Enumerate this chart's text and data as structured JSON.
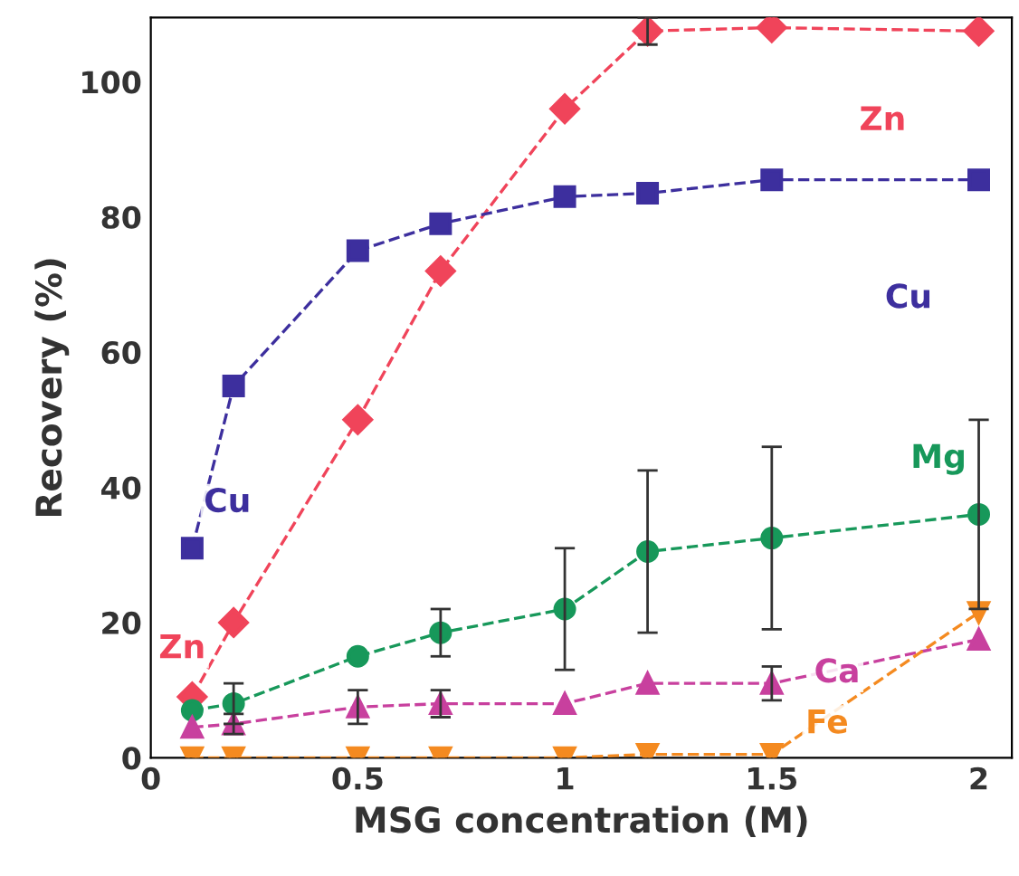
{
  "chart_data": {
    "type": "line",
    "xlabel": "MSG concentration (M)",
    "ylabel": "Recovery (%)",
    "x": [
      0.1,
      0.2,
      0.5,
      0.7,
      1,
      1.2,
      1.5,
      2
    ],
    "xlim": [
      0,
      2.08
    ],
    "ylim": [
      0,
      109.5
    ],
    "xticks": [
      0,
      0.5,
      1,
      1.5,
      2
    ],
    "yticks": [
      0,
      20,
      40,
      60,
      80,
      100
    ],
    "grid": false,
    "legend": false,
    "line_style": "dashed",
    "series": [
      {
        "color": "#f0445a",
        "marker": "diamond",
        "values": [
          9,
          20,
          50,
          72,
          96,
          107.5,
          108,
          107.5
        ],
        "errors": [
          null,
          null,
          null,
          null,
          null,
          2,
          null,
          null
        ]
      },
      {
        "color": "#3d2f9e",
        "marker": "square",
        "values": [
          31,
          55,
          75,
          79,
          83,
          83.5,
          85.5,
          85.5
        ]
      },
      {
        "color": "#17985a",
        "marker": "circle",
        "values": [
          7,
          8,
          15,
          18.5,
          22,
          30.5,
          32.5,
          36
        ],
        "errors": [
          null,
          3,
          null,
          3.5,
          9,
          12,
          13.5,
          14
        ]
      },
      {
        "color": "#c8409e",
        "marker": "triangle",
        "values": [
          4.5,
          5,
          7.5,
          8,
          8,
          11,
          11,
          17.5
        ],
        "errors": [
          null,
          1.5,
          2.5,
          2,
          null,
          null,
          2.5,
          null
        ]
      },
      {
        "color": "#f48a20",
        "marker": "triangle_down",
        "values": [
          0,
          0,
          0,
          0,
          0,
          0.5,
          0.5,
          21.5
        ]
      }
    ],
    "annotations": [
      "Zn",
      "Cu",
      {
        "text": "Mg",
        "x": 2,
        "y": 36
      },
      {
        "text": "Ca",
        "x": 1.5,
        "y": 11
      },
      {
        "text": "Fe",
        "x": 1.5,
        "y": 0.5
      },
      {
        "text": "Cu",
        "x": 0.1,
        "y": 31
      },
      {
        "text": "Zn",
        "x": 0.1,
        "y": 9
      }
    ]
  }
}
